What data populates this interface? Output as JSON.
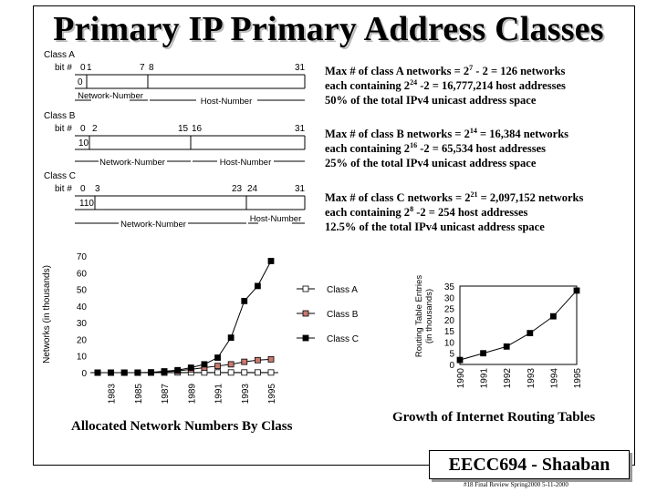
{
  "title": "Primary IP Primary Address Classes",
  "class_a": {
    "name": "Class A",
    "bit_label": "bit #",
    "bits": [
      "0",
      "1",
      "7",
      "8",
      "31"
    ],
    "prefix": "0",
    "net_label": "Network-Number",
    "host_label": "Host-Number",
    "desc": [
      "Max # of class A networks = 2",
      "7",
      " - 2 = 126 networks",
      "each containing 2",
      "24",
      " -2 = 16,777,214 host addresses",
      "50% of the total IPv4 unicast address space"
    ]
  },
  "class_b": {
    "name": "Class B",
    "bit_label": "bit #",
    "bits": [
      "0",
      "2",
      "15",
      "16",
      "31"
    ],
    "prefix": "10",
    "net_label": "Network-Number",
    "host_label": "Host-Number",
    "desc": [
      "Max # of class B networks = 2",
      "14",
      " = 16,384 networks",
      "each containing 2",
      "16",
      " -2 = 65,534 host addresses",
      "25% of the total IPv4 unicast address space"
    ]
  },
  "class_c": {
    "name": "Class C",
    "bit_label": "bit #",
    "bits": [
      "0",
      "3",
      "23",
      "24",
      "31"
    ],
    "prefix": "110",
    "net_label": "Network-Number",
    "host_label": "Host-Number",
    "desc": [
      "Max # of class C networks = 2",
      "21",
      " = 2,097,152 networks",
      "each containing 2",
      "8",
      " -2 = 254 host addresses",
      "12.5% of the total IPv4 unicast address space"
    ]
  },
  "chart_data": [
    {
      "type": "line",
      "ylabel": "Networks (in thousands)",
      "caption": "Allocated Network Numbers By Class",
      "ylim": [
        0,
        70
      ],
      "yticks": [
        "0",
        "10",
        "20",
        "30",
        "40",
        "50",
        "60",
        "70"
      ],
      "xticks": [
        "1983",
        "1985",
        "1987",
        "1989",
        "1991",
        "1993",
        "1995"
      ],
      "x": [
        1982,
        1983,
        1984,
        1985,
        1986,
        1987,
        1988,
        1989,
        1990,
        1991,
        1992,
        1993,
        1994,
        1995
      ],
      "series": [
        {
          "name": "Class A",
          "color": "#ffffff",
          "values": [
            0,
            0,
            0,
            0,
            0,
            0,
            0.1,
            0.1,
            0.1,
            0.1,
            0.1,
            0.1,
            0.1,
            0.1
          ]
        },
        {
          "name": "Class B",
          "color": "#c97a70",
          "values": [
            0,
            0,
            0,
            0,
            0.1,
            0.5,
            1,
            2,
            3,
            4,
            5,
            6.5,
            7.5,
            8
          ]
        },
        {
          "name": "Class C",
          "color": "#000000",
          "values": [
            0,
            0,
            0,
            0,
            0.2,
            0.8,
            1.5,
            3,
            5,
            9,
            21,
            43,
            52,
            67
          ]
        }
      ]
    },
    {
      "type": "line",
      "ylabel_lines": [
        "Routing Table Entries",
        "(in thousands)"
      ],
      "caption": "Growth of Internet Routing Tables",
      "ylim": [
        0,
        35
      ],
      "yticks": [
        "0",
        "5",
        "10",
        "15",
        "20",
        "25",
        "30",
        "35"
      ],
      "xticks": [
        "1990",
        "1991",
        "1992",
        "1993",
        "1994",
        "1995"
      ],
      "x": [
        1990,
        1991,
        1992,
        1993,
        1994,
        1995
      ],
      "series": [
        {
          "color": "#000000",
          "values": [
            2,
            5,
            8,
            14,
            21.5,
            33
          ]
        }
      ]
    }
  ],
  "brand": "EECC694 - Shaaban",
  "footer": "#18 Final Review Spring2000 5-11-2000"
}
